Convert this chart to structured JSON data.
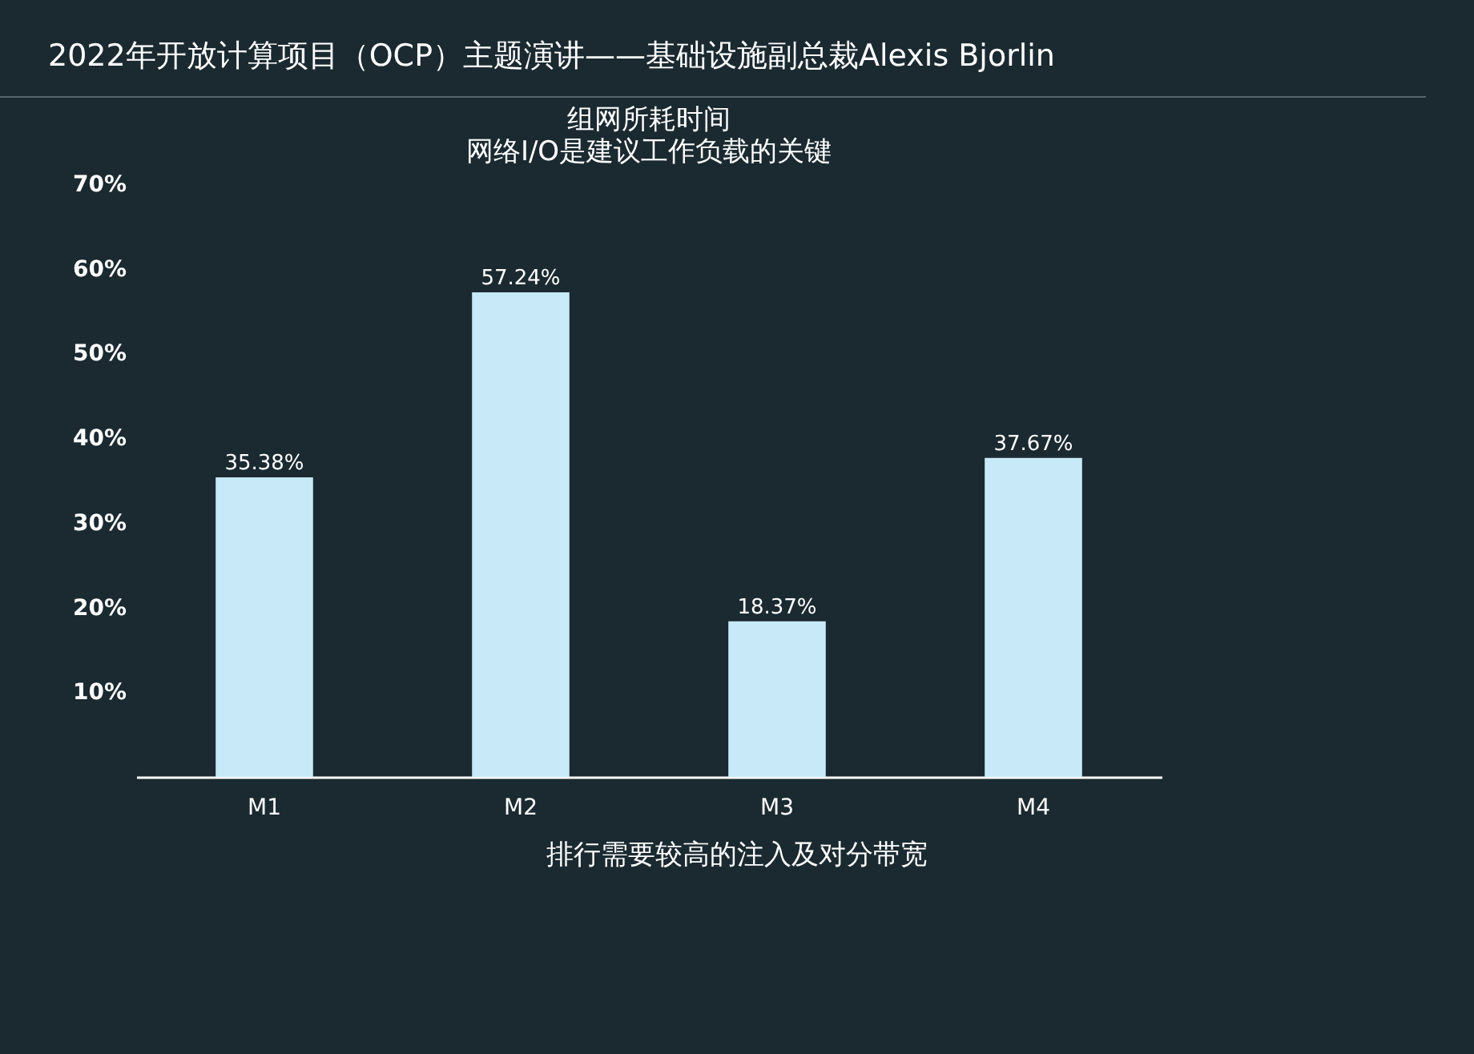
{
  "chart_data": {
    "type": "bar",
    "title": "组网所耗时间",
    "subtitle": "网络I/O是建议工作负载的关键",
    "annotations": [
      "2022年开放计算项目（OCP）主题演讲——基础设施副总裁Alexis Bjorlin",
      "排行需要较高的注入及对分带宽"
    ],
    "categories": [
      "M1",
      "M2",
      "M3",
      "M4"
    ],
    "values": [
      35.38,
      57.24,
      18.37,
      37.67
    ],
    "value_labels": [
      "35.38%",
      "57.24%",
      "18.37%",
      "37.67%"
    ],
    "color": "#c8e9f8",
    "ylim": [
      0,
      70
    ],
    "yticks": [
      {
        "value": 10,
        "label": "10%"
      },
      {
        "value": 20,
        "label": "20%"
      },
      {
        "value": 30,
        "label": "30%"
      },
      {
        "value": 40,
        "label": "40%"
      },
      {
        "value": 50,
        "label": "50%"
      },
      {
        "value": 60,
        "label": "60%"
      },
      {
        "value": 70,
        "label": "70%"
      }
    ],
    "grid": false
  }
}
